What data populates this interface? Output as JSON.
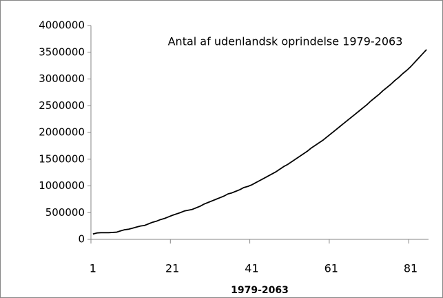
{
  "chart_data": {
    "type": "line",
    "title": "Antal af udenlandsk oprindelse 1979-2063",
    "x_label": "1979-2063",
    "categories": [
      "1",
      null,
      null,
      null,
      null,
      null,
      null,
      null,
      null,
      null,
      null,
      null,
      null,
      null,
      null,
      null,
      null,
      null,
      null,
      null,
      "21",
      null,
      null,
      null,
      null,
      null,
      null,
      null,
      null,
      null,
      null,
      null,
      null,
      null,
      null,
      null,
      null,
      null,
      null,
      null,
      "41",
      null,
      null,
      null,
      null,
      null,
      null,
      null,
      null,
      null,
      null,
      null,
      null,
      null,
      null,
      null,
      null,
      null,
      null,
      null,
      "61",
      null,
      null,
      null,
      null,
      null,
      null,
      null,
      null,
      null,
      null,
      null,
      null,
      null,
      null,
      null,
      null,
      null,
      null,
      null,
      "81",
      null,
      null,
      null,
      null
    ],
    "values": [
      100000,
      120000,
      125000,
      125000,
      125000,
      130000,
      135000,
      160000,
      180000,
      190000,
      210000,
      230000,
      250000,
      260000,
      290000,
      320000,
      340000,
      370000,
      390000,
      420000,
      450000,
      475000,
      500000,
      530000,
      545000,
      560000,
      590000,
      620000,
      660000,
      690000,
      720000,
      750000,
      780000,
      810000,
      850000,
      870000,
      900000,
      930000,
      970000,
      990000,
      1020000,
      1060000,
      1100000,
      1140000,
      1180000,
      1220000,
      1260000,
      1310000,
      1360000,
      1400000,
      1450000,
      1500000,
      1550000,
      1600000,
      1650000,
      1710000,
      1760000,
      1810000,
      1860000,
      1920000,
      1980000,
      2040000,
      2100000,
      2160000,
      2220000,
      2280000,
      2340000,
      2400000,
      2460000,
      2520000,
      2590000,
      2650000,
      2710000,
      2780000,
      2840000,
      2900000,
      2970000,
      3030000,
      3100000,
      3160000,
      3230000,
      3310000,
      3390000,
      3470000,
      3550000
    ],
    "color": "#000000",
    "ylim": [
      0,
      4000000
    ],
    "yticks": [
      0,
      500000,
      1000000,
      1500000,
      2000000,
      2500000,
      3000000,
      3500000,
      4000000
    ]
  }
}
